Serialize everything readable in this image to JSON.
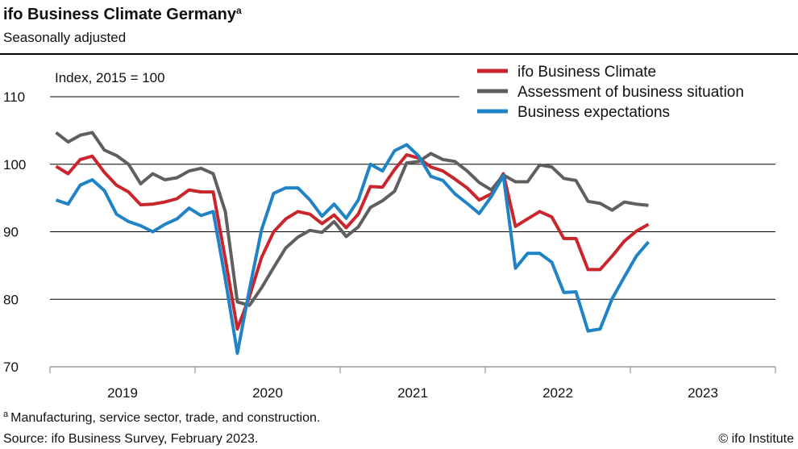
{
  "chart_data": {
    "type": "line",
    "title": "ifo Business Climate Germany",
    "title_note": "a",
    "subtitle": "Seasonally adjusted",
    "y_label": "Index, 2015 = 100",
    "footnote_marker": "a",
    "footnote": "Manufacturing, service sector, trade, and construction.",
    "source": "Source: ifo Business Survey, February 2023.",
    "credit": "© ifo Institute",
    "categories": [
      "2019",
      null,
      null,
      null,
      null,
      null,
      null,
      null,
      null,
      null,
      null,
      null,
      "2020",
      null,
      null,
      null,
      null,
      null,
      null,
      null,
      null,
      null,
      null,
      null,
      "2021",
      null,
      null,
      null,
      null,
      null,
      null,
      null,
      null,
      null,
      null,
      null,
      "2022",
      null,
      null,
      null,
      null,
      null,
      null,
      null,
      null,
      null,
      null,
      null,
      "2023",
      null,
      null,
      null,
      null,
      null,
      null,
      null,
      null,
      null,
      null,
      null
    ],
    "ylim": [
      70,
      110
    ],
    "yticks": [
      70,
      80,
      90,
      100,
      110
    ],
    "grid": true,
    "legend": "top-right",
    "series": [
      {
        "name": "ifo Business Climate",
        "color": "#c8262c",
        "values": [
          99.7,
          98.6,
          100.7,
          101.2,
          98.8,
          96.9,
          95.9,
          94.0,
          94.1,
          94.4,
          94.9,
          96.2,
          95.9,
          95.9,
          86.0,
          75.6,
          80.4,
          86.2,
          90.0,
          91.9,
          93.0,
          92.6,
          91.2,
          92.5,
          90.6,
          92.6,
          96.7,
          96.6,
          99.2,
          101.4,
          100.9,
          99.6,
          99.0,
          97.8,
          96.5,
          94.7,
          95.6,
          98.6,
          90.8,
          91.9,
          93.0,
          92.2,
          89.0,
          89.0,
          84.4,
          84.4,
          86.4,
          88.6,
          90.1,
          91.1,
          null,
          null,
          null,
          null,
          null,
          null,
          null,
          null,
          null,
          null
        ]
      },
      {
        "name": "Assessment of business situation",
        "color": "#5f5f5f",
        "values": [
          104.7,
          103.3,
          104.3,
          104.7,
          102.1,
          101.3,
          100.0,
          97.1,
          98.6,
          97.7,
          98.0,
          99.0,
          99.4,
          98.6,
          93.0,
          79.6,
          79.1,
          81.7,
          84.7,
          87.6,
          89.2,
          90.2,
          89.9,
          91.5,
          89.3,
          90.7,
          93.6,
          94.6,
          96.0,
          100.2,
          100.4,
          101.6,
          100.7,
          100.4,
          99.0,
          97.3,
          96.2,
          98.4,
          97.4,
          97.4,
          99.9,
          99.6,
          97.9,
          97.6,
          94.5,
          94.2,
          93.2,
          94.4,
          94.1,
          93.9,
          null,
          null,
          null,
          null,
          null,
          null,
          null,
          null,
          null,
          null
        ]
      },
      {
        "name": "Business expectations",
        "color": "#1f83c6",
        "values": [
          94.7,
          94.1,
          96.9,
          97.7,
          96.1,
          92.6,
          91.5,
          90.9,
          90.0,
          91.1,
          91.9,
          93.5,
          92.4,
          93.0,
          83.0,
          72.0,
          81.5,
          90.3,
          95.7,
          96.5,
          96.5,
          94.7,
          92.3,
          94.1,
          92.0,
          94.7,
          100.0,
          99.0,
          102.0,
          102.9,
          101.2,
          98.2,
          97.6,
          95.6,
          94.2,
          92.7,
          95.2,
          98.3,
          84.6,
          86.8,
          86.8,
          85.5,
          81.0,
          81.1,
          75.3,
          75.6,
          80.1,
          83.3,
          86.4,
          88.5,
          null,
          null,
          null,
          null,
          null,
          null,
          null,
          null,
          null,
          null
        ]
      }
    ]
  }
}
